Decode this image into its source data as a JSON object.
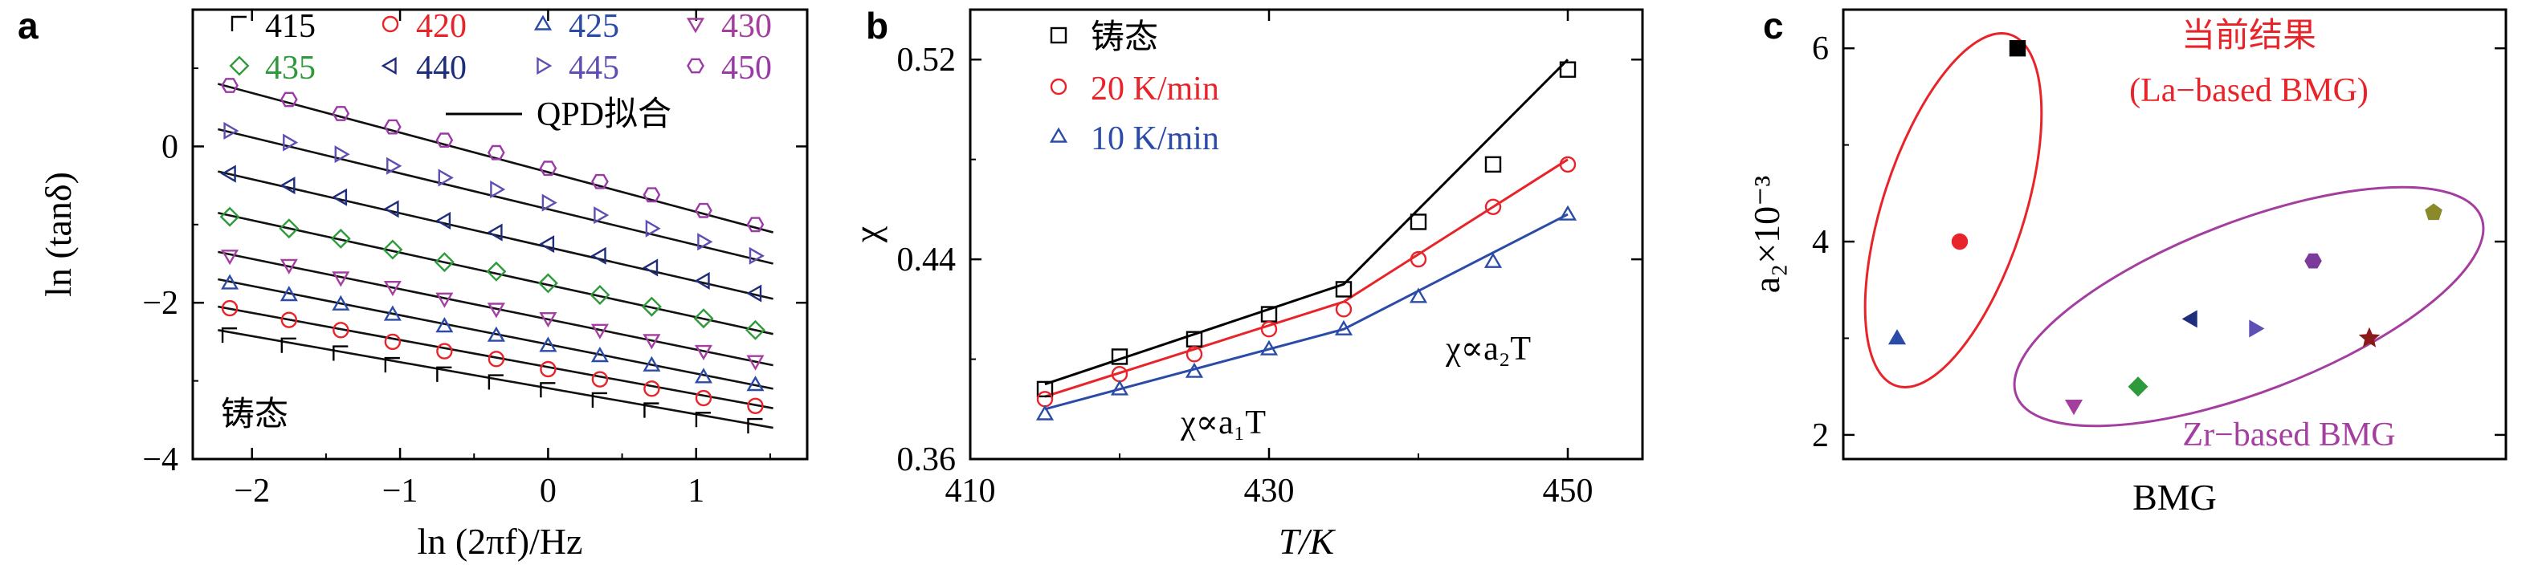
{
  "chart_data": [
    {
      "panel": "a",
      "type": "scatter",
      "xlabel": "ln (2πf)/Hz",
      "ylabel": "ln (tanδ)",
      "xlim": [
        -2.4,
        1.75
      ],
      "ylim": [
        -4.0,
        1.75
      ],
      "xticks": [
        -2,
        -1,
        0,
        1
      ],
      "yticks": [
        -4,
        -2,
        0
      ],
      "annotation": "铸态",
      "fit_label": "QPD拟合",
      "x": [
        -2.15,
        -1.75,
        -1.4,
        -1.05,
        -0.7,
        -0.35,
        0.0,
        0.35,
        0.7,
        1.05,
        1.4
      ],
      "series": [
        {
          "name": "415",
          "color": "#000000",
          "marker": "corner",
          "fit": [
            -2.35,
            -3.6
          ],
          "values": [
            -2.42,
            -2.55,
            -2.65,
            -2.8,
            -2.92,
            -3.02,
            -3.12,
            -3.25,
            -3.38,
            -3.5,
            -3.58
          ]
        },
        {
          "name": "420",
          "color": "#e8242a",
          "marker": "circle",
          "fit": [
            -2.05,
            -3.35
          ],
          "values": [
            -2.07,
            -2.22,
            -2.35,
            -2.5,
            -2.62,
            -2.72,
            -2.85,
            -2.98,
            -3.1,
            -3.22,
            -3.32
          ]
        },
        {
          "name": "425",
          "color": "#2b4ba8",
          "marker": "triangle-up",
          "fit": [
            -1.7,
            -3.1
          ],
          "values": [
            -1.75,
            -1.9,
            -2.02,
            -2.15,
            -2.3,
            -2.42,
            -2.55,
            -2.68,
            -2.8,
            -2.95,
            -3.05
          ]
        },
        {
          "name": "430",
          "color": "#a43e9f",
          "marker": "triangle-down",
          "fit": [
            -1.35,
            -2.8
          ],
          "values": [
            -1.4,
            -1.52,
            -1.68,
            -1.8,
            -1.95,
            -2.08,
            -2.2,
            -2.35,
            -2.48,
            -2.62,
            -2.75
          ]
        },
        {
          "name": "435",
          "color": "#2e9a3c",
          "marker": "diamond",
          "fit": [
            -0.85,
            -2.4
          ],
          "values": [
            -0.9,
            -1.05,
            -1.18,
            -1.32,
            -1.48,
            -1.6,
            -1.75,
            -1.9,
            -2.05,
            -2.2,
            -2.35
          ]
        },
        {
          "name": "440",
          "color": "#1f2e7a",
          "marker": "triangle-left",
          "fit": [
            -0.32,
            -1.95
          ],
          "values": [
            -0.35,
            -0.5,
            -0.65,
            -0.8,
            -0.95,
            -1.1,
            -1.25,
            -1.4,
            -1.55,
            -1.72,
            -1.88
          ]
        },
        {
          "name": "445",
          "color": "#5d4fb3",
          "marker": "triangle-right",
          "fit": [
            0.22,
            -1.5
          ],
          "values": [
            0.2,
            0.05,
            -0.1,
            -0.25,
            -0.4,
            -0.55,
            -0.72,
            -0.88,
            -1.05,
            -1.22,
            -1.4
          ]
        },
        {
          "name": "450",
          "color": "#9a3aa6",
          "marker": "hexagon",
          "fit": [
            0.8,
            -1.1
          ],
          "values": [
            0.78,
            0.6,
            0.42,
            0.25,
            0.08,
            -0.08,
            -0.28,
            -0.45,
            -0.62,
            -0.82,
            -1.0
          ]
        }
      ]
    },
    {
      "panel": "b",
      "type": "line",
      "xlabel": "T/K",
      "ylabel": "χ",
      "xlim": [
        410,
        455
      ],
      "ylim": [
        0.36,
        0.54
      ],
      "xticks": [
        410,
        430,
        450
      ],
      "yticks": [
        0.36,
        0.44,
        0.52
      ],
      "annotations": [
        {
          "text": "χ∝a₁T"
        },
        {
          "text": "χ∝a₂T"
        }
      ],
      "x": [
        415,
        420,
        425,
        430,
        435,
        440,
        445,
        450
      ],
      "series": [
        {
          "name": "铸态",
          "color": "#000000",
          "marker": "square",
          "values": [
            0.388,
            0.401,
            0.408,
            0.418,
            0.428,
            0.455,
            0.478,
            0.516
          ]
        },
        {
          "name": "20 K/min",
          "color": "#e8242a",
          "marker": "circle",
          "values": [
            0.384,
            0.394,
            0.402,
            0.412,
            0.42,
            0.44,
            0.461,
            0.478
          ]
        },
        {
          "name": "10 K/min",
          "color": "#2b4ba8",
          "marker": "triangle-up",
          "values": [
            0.378,
            0.388,
            0.395,
            0.404,
            0.412,
            0.425,
            0.439,
            0.458
          ]
        }
      ],
      "fits": [
        {
          "series": "铸态",
          "points": [
            [
              415,
              0.39
            ],
            [
              435,
              0.43
            ],
            [
              450,
              0.52
            ]
          ]
        },
        {
          "series": "20 K/min",
          "points": [
            [
              415,
              0.385
            ],
            [
              435,
              0.423
            ],
            [
              450,
              0.48
            ]
          ]
        },
        {
          "series": "10 K/min",
          "points": [
            [
              415,
              0.38
            ],
            [
              435,
              0.412
            ],
            [
              450,
              0.458
            ]
          ]
        }
      ]
    },
    {
      "panel": "c",
      "type": "scatter",
      "xlabel": "BMG",
      "ylabel": "a₂×10⁻³",
      "ylim": [
        1.75,
        6.4
      ],
      "yticks": [
        2,
        4,
        6
      ],
      "groups": [
        {
          "label_lines": [
            "当前结果",
            "(La−based BMG)"
          ],
          "color": "#e8242a"
        },
        {
          "label_lines": [
            "Zr−based BMG"
          ],
          "color": "#a43e9f"
        }
      ],
      "points": [
        {
          "x": 1,
          "y": 3.0,
          "marker": "triangle-up",
          "color": "#2b4ba8"
        },
        {
          "x": 2,
          "y": 4.0,
          "marker": "circle",
          "color": "#e8242a"
        },
        {
          "x": 3,
          "y": 6.0,
          "marker": "square",
          "color": "#000000"
        },
        {
          "x": 4,
          "y": 2.3,
          "marker": "triangle-down",
          "color": "#a43e9f"
        },
        {
          "x": 5,
          "y": 2.5,
          "marker": "diamond",
          "color": "#2e9a3c"
        },
        {
          "x": 6,
          "y": 3.2,
          "marker": "triangle-left",
          "color": "#1f2e7a"
        },
        {
          "x": 7,
          "y": 3.1,
          "marker": "triangle-right",
          "color": "#5d4fb3"
        },
        {
          "x": 8,
          "y": 3.8,
          "marker": "hexagon",
          "color": "#7a3b9a"
        },
        {
          "x": 9,
          "y": 3.0,
          "marker": "star",
          "color": "#8b1a1a"
        },
        {
          "x": 10,
          "y": 4.3,
          "marker": "pentagon",
          "color": "#8a8a2a"
        }
      ]
    }
  ]
}
